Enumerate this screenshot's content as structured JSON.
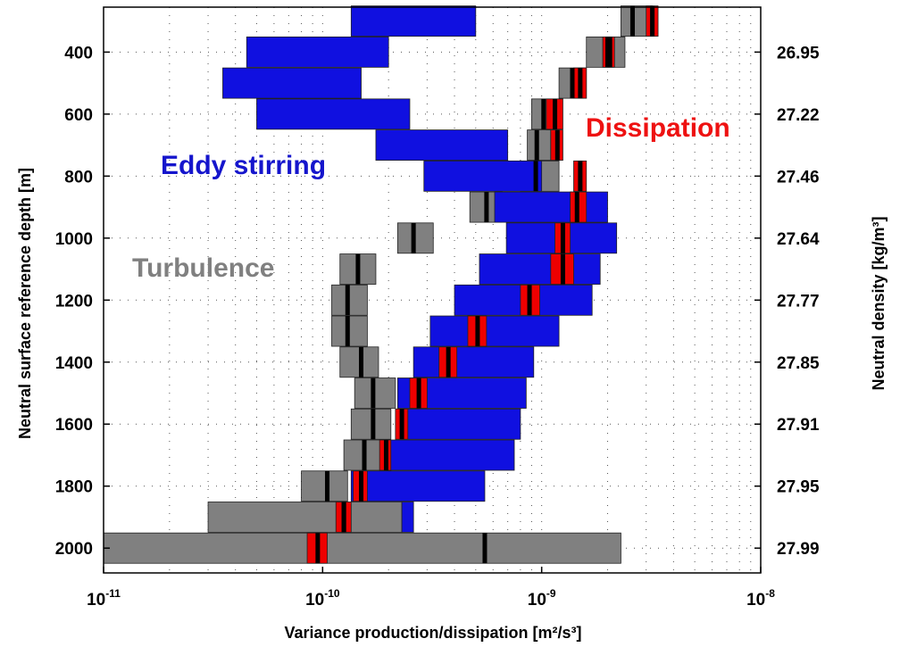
{
  "chart_data": {
    "type": "bar",
    "xlabel": "Variance production/dissipation [m²/s³]",
    "ylabel_left": "Neutral surface reference depth [m]",
    "ylabel_right": "Neutral density [kg/m³]",
    "x_scale": "log",
    "xlim": [
      1e-11,
      1e-08
    ],
    "ylim": [
      2080,
      255
    ],
    "x_ticks": [
      {
        "base": "10",
        "exp": "-11"
      },
      {
        "base": "10",
        "exp": "-10"
      },
      {
        "base": "10",
        "exp": "-9"
      },
      {
        "base": "10",
        "exp": "-8"
      }
    ],
    "y_ticks": [
      "400",
      "600",
      "800",
      "1000",
      "1200",
      "1400",
      "1600",
      "1800",
      "2000"
    ],
    "y2_ticks": [
      "26.95",
      "27.22",
      "27.46",
      "27.64",
      "27.77",
      "27.85",
      "27.91",
      "27.95",
      "27.99"
    ],
    "grid": true,
    "annotations": [
      {
        "text": "Eddy stirring",
        "color": "#1515cc"
      },
      {
        "text": "Dissipation",
        "color": "#ee1111"
      },
      {
        "text": "Turbulence",
        "color": "#808080"
      }
    ],
    "series": [
      {
        "name": "Eddy stirring",
        "color": "#1010e0",
        "bars": [
          {
            "depth": 300,
            "low": 1.35e-10,
            "high": 5e-10
          },
          {
            "depth": 400,
            "low": 4.5e-11,
            "high": 2e-10
          },
          {
            "depth": 500,
            "low": 3.5e-11,
            "high": 1.5e-10
          },
          {
            "depth": 600,
            "low": 5e-11,
            "high": 2.5e-10
          },
          {
            "depth": 700,
            "low": 1.75e-10,
            "high": 7e-10
          },
          {
            "depth": 800,
            "low": 2.9e-10,
            "high": 1e-09
          },
          {
            "depth": 900,
            "low": 6.1e-10,
            "high": 2e-09
          },
          {
            "depth": 1000,
            "low": 6.9e-10,
            "high": 2.2e-09
          },
          {
            "depth": 1100,
            "low": 5.2e-10,
            "high": 1.85e-09
          },
          {
            "depth": 1200,
            "low": 4e-10,
            "high": 1.7e-09
          },
          {
            "depth": 1300,
            "low": 3.1e-10,
            "high": 1.2e-09
          },
          {
            "depth": 1400,
            "low": 2.6e-10,
            "high": 9.2e-10
          },
          {
            "depth": 1500,
            "low": 2.2e-10,
            "high": 8.5e-10
          },
          {
            "depth": 1600,
            "low": 2.35e-10,
            "high": 8e-10
          },
          {
            "depth": 1700,
            "low": 1.95e-10,
            "high": 7.5e-10
          },
          {
            "depth": 1800,
            "low": 1.35e-10,
            "high": 5.5e-10
          },
          {
            "depth": 1900,
            "low": 2.3e-10,
            "high": 2.6e-10
          }
        ]
      },
      {
        "name": "Turbulence",
        "color": "#808080",
        "bars": [
          {
            "depth": 300,
            "low": 2.3e-09,
            "high": 3.2e-09,
            "median": 2.6e-09
          },
          {
            "depth": 400,
            "low": 1.6e-09,
            "high": 2.4e-09,
            "median": 2e-09
          },
          {
            "depth": 500,
            "low": 1.2e-09,
            "high": 1.6e-09,
            "median": 1.38e-09
          },
          {
            "depth": 600,
            "low": 9e-10,
            "high": 1.2e-09,
            "median": 1.02e-09
          },
          {
            "depth": 700,
            "low": 8.6e-10,
            "high": 1.1e-09,
            "median": 9.5e-10
          },
          {
            "depth": 800,
            "low": 8e-10,
            "high": 1.2e-09,
            "median": 9.4e-10
          },
          {
            "depth": 900,
            "low": 4.7e-10,
            "high": 6.6e-10,
            "median": 5.6e-10
          },
          {
            "depth": 1000,
            "low": 2.2e-10,
            "high": 3.2e-10,
            "median": 2.6e-10
          },
          {
            "depth": 1100,
            "low": 1.2e-10,
            "high": 1.75e-10,
            "median": 1.45e-10
          },
          {
            "depth": 1200,
            "low": 1.1e-10,
            "high": 1.6e-10,
            "median": 1.3e-10
          },
          {
            "depth": 1300,
            "low": 1.1e-10,
            "high": 1.6e-10,
            "median": 1.3e-10
          },
          {
            "depth": 1400,
            "low": 1.2e-10,
            "high": 1.8e-10,
            "median": 1.5e-10
          },
          {
            "depth": 1500,
            "low": 1.4e-10,
            "high": 2.15e-10,
            "median": 1.7e-10
          },
          {
            "depth": 1600,
            "low": 1.35e-10,
            "high": 2.05e-10,
            "median": 1.7e-10
          },
          {
            "depth": 1700,
            "low": 1.25e-10,
            "high": 2.05e-10,
            "median": 1.55e-10
          },
          {
            "depth": 1800,
            "low": 8e-11,
            "high": 1.3e-10,
            "median": 1.05e-10
          },
          {
            "depth": 1900,
            "low": 3e-11,
            "high": 2.3e-10,
            "median": 1.25e-10
          },
          {
            "depth": 2000,
            "low": 1e-11,
            "high": 2.3e-09,
            "median": 5.5e-10
          }
        ]
      },
      {
        "name": "Dissipation",
        "color": "#ee0000",
        "bars": [
          {
            "depth": 300,
            "low": 3e-09,
            "high": 3.4e-09,
            "median": 3.2e-09
          },
          {
            "depth": 400,
            "low": 1.9e-09,
            "high": 2.15e-09,
            "median": 2.05e-09
          },
          {
            "depth": 500,
            "low": 1.4e-09,
            "high": 1.6e-09,
            "median": 1.5e-09
          },
          {
            "depth": 600,
            "low": 1.05e-09,
            "high": 1.25e-09,
            "median": 1.15e-09
          },
          {
            "depth": 700,
            "low": 1.1e-09,
            "high": 1.25e-09,
            "median": 1.18e-09
          },
          {
            "depth": 800,
            "low": 1.4e-09,
            "high": 1.6e-09,
            "median": 1.5e-09
          },
          {
            "depth": 900,
            "low": 1.35e-09,
            "high": 1.6e-09,
            "median": 1.45e-09
          },
          {
            "depth": 1000,
            "low": 1.15e-09,
            "high": 1.35e-09,
            "median": 1.25e-09
          },
          {
            "depth": 1100,
            "low": 1.1e-09,
            "high": 1.4e-09,
            "median": 1.25e-09
          },
          {
            "depth": 1200,
            "low": 8e-10,
            "high": 9.8e-10,
            "median": 8.8e-10
          },
          {
            "depth": 1300,
            "low": 4.6e-10,
            "high": 5.6e-10,
            "median": 5.1e-10
          },
          {
            "depth": 1400,
            "low": 3.4e-10,
            "high": 4.1e-10,
            "median": 3.75e-10
          },
          {
            "depth": 1500,
            "low": 2.5e-10,
            "high": 3e-10,
            "median": 2.75e-10
          },
          {
            "depth": 1600,
            "low": 2.15e-10,
            "high": 2.45e-10,
            "median": 2.3e-10
          },
          {
            "depth": 1700,
            "low": 1.82e-10,
            "high": 2.05e-10,
            "median": 1.95e-10
          },
          {
            "depth": 1800,
            "low": 1.38e-10,
            "high": 1.6e-10,
            "median": 1.5e-10
          },
          {
            "depth": 1900,
            "low": 1.15e-10,
            "high": 1.35e-10,
            "median": 1.25e-10
          },
          {
            "depth": 2000,
            "low": 8.5e-11,
            "high": 1.05e-10,
            "median": 9.5e-11
          }
        ]
      }
    ]
  }
}
